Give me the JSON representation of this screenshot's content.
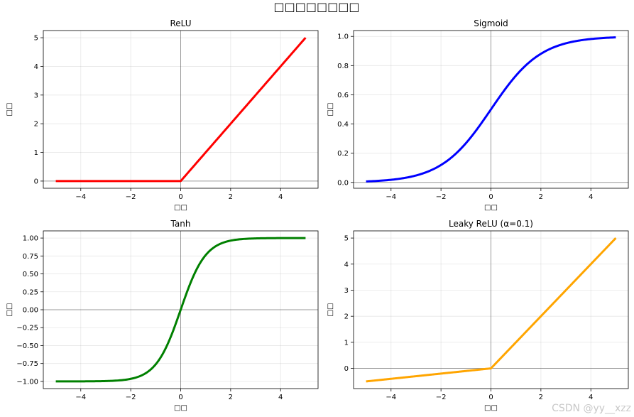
{
  "figure": {
    "suptitle": "□□□□□□□□",
    "watermark": "CSDN @yy__xzz"
  },
  "chart_data": [
    {
      "type": "line",
      "title": "ReLU",
      "xlabel": "□□",
      "ylabel": "□□",
      "function": "relu",
      "color": "#ff0000",
      "xlim": [
        -5.5,
        5.5
      ],
      "ylim": [
        -0.25,
        5.25
      ],
      "xticks": [
        -4,
        -2,
        0,
        2,
        4
      ],
      "yticks": [
        0,
        1,
        2,
        3,
        4,
        5
      ],
      "ytick_labels": [
        "0",
        "1",
        "2",
        "3",
        "4",
        "5"
      ],
      "grid": true,
      "x": [
        -5,
        -4,
        -3,
        -2,
        -1,
        0,
        1,
        2,
        3,
        4,
        5
      ],
      "y": [
        0,
        0,
        0,
        0,
        0,
        0,
        1,
        2,
        3,
        4,
        5
      ]
    },
    {
      "type": "line",
      "title": "Sigmoid",
      "xlabel": "□□",
      "ylabel": "□□",
      "function": "sigmoid",
      "color": "#0000ff",
      "xlim": [
        -5.5,
        5.5
      ],
      "ylim": [
        -0.04,
        1.04
      ],
      "xticks": [
        -4,
        -2,
        0,
        2,
        4
      ],
      "yticks": [
        0.0,
        0.2,
        0.4,
        0.6,
        0.8,
        1.0
      ],
      "ytick_labels": [
        "0.0",
        "0.2",
        "0.4",
        "0.6",
        "0.8",
        "1.0"
      ],
      "grid": true,
      "x": [
        -5,
        -4,
        -3,
        -2,
        -1,
        0,
        1,
        2,
        3,
        4,
        5
      ],
      "y": [
        0.007,
        0.018,
        0.047,
        0.119,
        0.269,
        0.5,
        0.731,
        0.881,
        0.953,
        0.982,
        0.993
      ]
    },
    {
      "type": "line",
      "title": "Tanh",
      "xlabel": "□□",
      "ylabel": "□□",
      "function": "tanh",
      "color": "#008000",
      "xlim": [
        -5.5,
        5.5
      ],
      "ylim": [
        -1.1,
        1.1
      ],
      "xticks": [
        -4,
        -2,
        0,
        2,
        4
      ],
      "yticks": [
        -1.0,
        -0.75,
        -0.5,
        -0.25,
        0.0,
        0.25,
        0.5,
        0.75,
        1.0
      ],
      "ytick_labels": [
        "−1.00",
        "−0.75",
        "−0.50",
        "−0.25",
        "0.00",
        "0.25",
        "0.50",
        "0.75",
        "1.00"
      ],
      "grid": true,
      "x": [
        -5,
        -4,
        -3,
        -2,
        -1,
        0,
        1,
        2,
        3,
        4,
        5
      ],
      "y": [
        -1.0,
        -0.999,
        -0.995,
        -0.964,
        -0.762,
        0.0,
        0.762,
        0.964,
        0.995,
        0.999,
        1.0
      ]
    },
    {
      "type": "line",
      "title": "Leaky ReLU (α=0.1)",
      "xlabel": "□□",
      "ylabel": "□□",
      "function": "leaky_relu",
      "alpha": 0.1,
      "color": "#ffa500",
      "xlim": [
        -5.5,
        5.5
      ],
      "ylim": [
        -0.775,
        5.275
      ],
      "xticks": [
        -4,
        -2,
        0,
        2,
        4
      ],
      "yticks": [
        0,
        1,
        2,
        3,
        4,
        5
      ],
      "ytick_labels": [
        "0",
        "1",
        "2",
        "3",
        "4",
        "5"
      ],
      "grid": true,
      "x": [
        -5,
        -4,
        -3,
        -2,
        -1,
        0,
        1,
        2,
        3,
        4,
        5
      ],
      "y": [
        -0.5,
        -0.4,
        -0.3,
        -0.2,
        -0.1,
        0,
        1,
        2,
        3,
        4,
        5
      ]
    }
  ]
}
